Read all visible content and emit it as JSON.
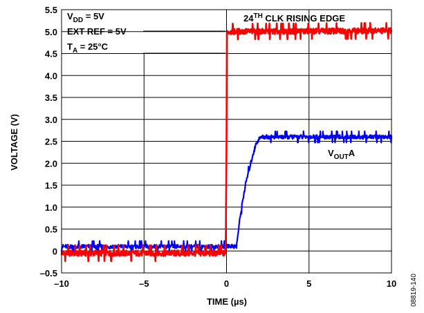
{
  "chart_data": {
    "type": "line",
    "title": "",
    "xlabel": "TIME (µs)",
    "ylabel": "VOLTAGE (V)",
    "xlim": [
      -10,
      10
    ],
    "ylim": [
      -0.5,
      5.5
    ],
    "xticks": [
      -10,
      -5,
      0,
      5,
      10
    ],
    "xtick_labels": [
      "–10",
      "–5",
      "0",
      "5",
      "10"
    ],
    "yticks": [
      -0.5,
      0,
      0.5,
      1.0,
      1.5,
      2.0,
      2.5,
      3.0,
      3.5,
      4.0,
      4.5,
      5.0,
      5.5
    ],
    "ytick_labels": [
      "–0.5",
      "0",
      "0.5",
      "1.0",
      "1.5",
      "2.0",
      "2.5",
      "3.0",
      "3.5",
      "4.0",
      "4.5",
      "5.0",
      "5.5"
    ],
    "grid": true,
    "series": [
      {
        "name": "24TH CLK RISING EDGE",
        "color": "#ff0000",
        "x": [
          -10,
          -0.05,
          0,
          0.02,
          10
        ],
        "y": [
          -0.05,
          -0.05,
          2.5,
          5.0,
          5.02
        ]
      },
      {
        "name": "VOUTA",
        "color": "#0000ff",
        "x": [
          -10,
          -0.1,
          0.1,
          0.6,
          0.8,
          1.0,
          1.2,
          1.4,
          1.6,
          1.8,
          2.0,
          2.2,
          10
        ],
        "y": [
          0.1,
          0.1,
          0.12,
          0.1,
          0.7,
          1.2,
          1.6,
          1.9,
          2.2,
          2.45,
          2.57,
          2.6,
          2.6
        ]
      }
    ],
    "annotations": {
      "vdd_main": "V",
      "vdd_sub": "DD",
      "vdd_rest": " = 5V",
      "ext_ref": "EXT REF = 5V",
      "ta_main": "T",
      "ta_sub": "A",
      "ta_rest": " = 25°C",
      "clk_prefix": "24",
      "clk_sup": "TH",
      "clk_rest": " CLK RISING EDGE",
      "vout_main": "V",
      "vout_sub": "OUT",
      "vout_rest": "A"
    }
  },
  "figure_id": "08819-140"
}
